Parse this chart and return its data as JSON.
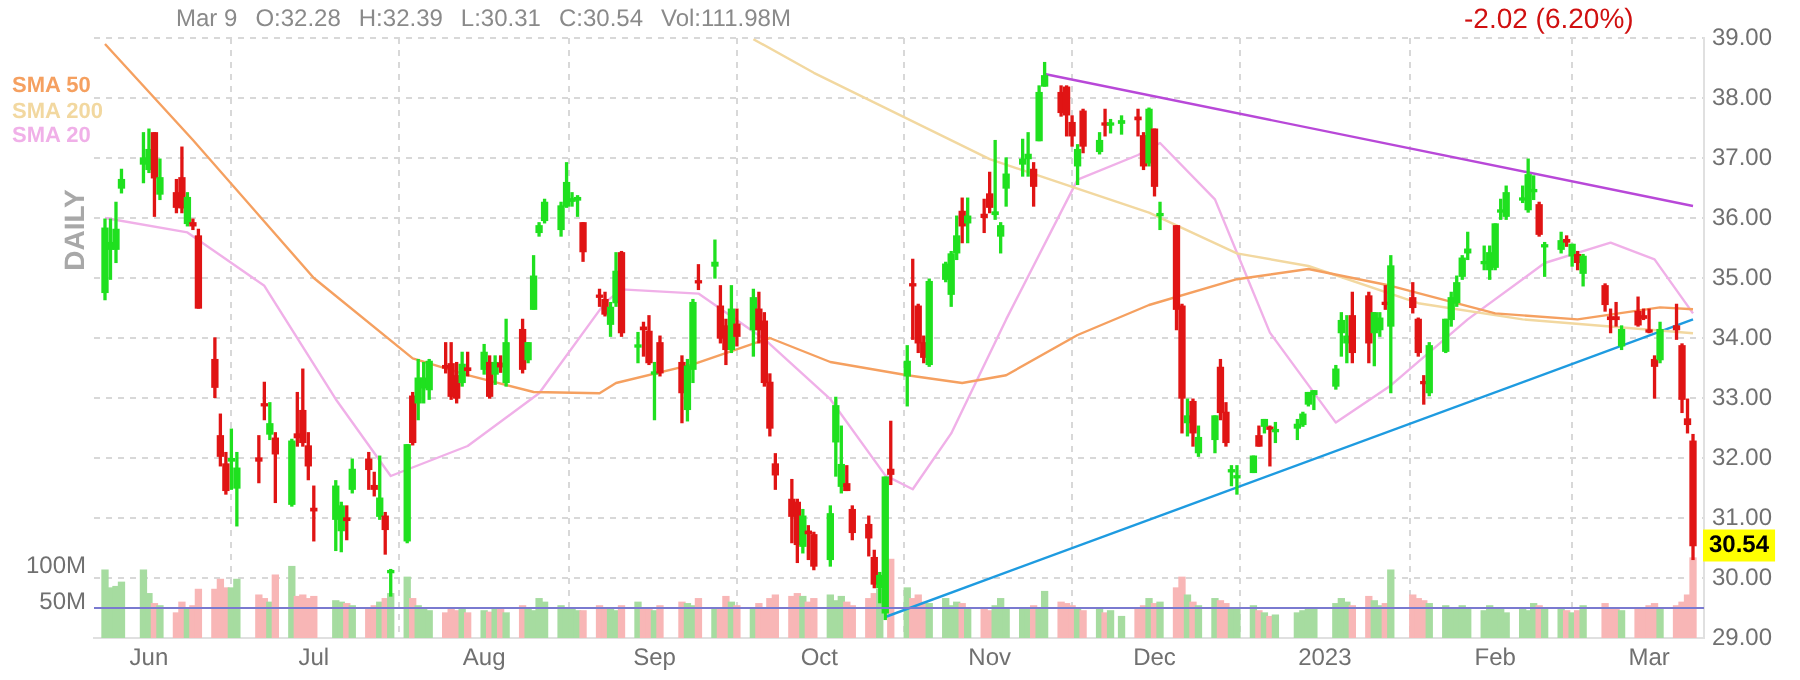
{
  "chart_data": {
    "type": "candlestick",
    "x": [
      "2022-05-24",
      "2022-05-25",
      "2022-05-26",
      "2022-05-27",
      "2022-05-31",
      "2022-06-01",
      "2022-06-02",
      "2022-06-03",
      "2022-06-06",
      "2022-06-07",
      "2022-06-08",
      "2022-06-09",
      "2022-06-10",
      "2022-06-13",
      "2022-06-14",
      "2022-06-15",
      "2022-06-16",
      "2022-06-17",
      "2022-06-21",
      "2022-06-22",
      "2022-06-23",
      "2022-06-24",
      "2022-06-27",
      "2022-06-28",
      "2022-06-29",
      "2022-06-30",
      "2022-07-01",
      "2022-07-05",
      "2022-07-06",
      "2022-07-07",
      "2022-07-08",
      "2022-07-11",
      "2022-07-12",
      "2022-07-13",
      "2022-07-14",
      "2022-07-15",
      "2022-07-18",
      "2022-07-19",
      "2022-07-20",
      "2022-07-21",
      "2022-07-22",
      "2022-07-25",
      "2022-07-26",
      "2022-07-27",
      "2022-07-28",
      "2022-07-29",
      "2022-08-01",
      "2022-08-02",
      "2022-08-03",
      "2022-08-04",
      "2022-08-05",
      "2022-08-08",
      "2022-08-09",
      "2022-08-10",
      "2022-08-11",
      "2022-08-12",
      "2022-08-15",
      "2022-08-16",
      "2022-08-17",
      "2022-08-18",
      "2022-08-19",
      "2022-08-22",
      "2022-08-23",
      "2022-08-24",
      "2022-08-25",
      "2022-08-26",
      "2022-08-29",
      "2022-08-30",
      "2022-08-31",
      "2022-09-01",
      "2022-09-02",
      "2022-09-06",
      "2022-09-07",
      "2022-09-08",
      "2022-09-09",
      "2022-09-12",
      "2022-09-13",
      "2022-09-14",
      "2022-09-15",
      "2022-09-16",
      "2022-09-19",
      "2022-09-20",
      "2022-09-21",
      "2022-09-22",
      "2022-09-23",
      "2022-09-26",
      "2022-09-27",
      "2022-09-28",
      "2022-09-29",
      "2022-09-30",
      "2022-10-03",
      "2022-10-04",
      "2022-10-05",
      "2022-10-06",
      "2022-10-07",
      "2022-10-10",
      "2022-10-11",
      "2022-10-12",
      "2022-10-13",
      "2022-10-14",
      "2022-10-17",
      "2022-10-18",
      "2022-10-19",
      "2022-10-20",
      "2022-10-21",
      "2022-10-24",
      "2022-10-25",
      "2022-10-26",
      "2022-10-27",
      "2022-10-28",
      "2022-10-31",
      "2022-11-01",
      "2022-11-02",
      "2022-11-03",
      "2022-11-04",
      "2022-11-07",
      "2022-11-08",
      "2022-11-09",
      "2022-11-10",
      "2022-11-11",
      "2022-11-14",
      "2022-11-15",
      "2022-11-16",
      "2022-11-17",
      "2022-11-18",
      "2022-11-21",
      "2022-11-22",
      "2022-11-23",
      "2022-11-25",
      "2022-11-28",
      "2022-11-29",
      "2022-11-30",
      "2022-12-01",
      "2022-12-02",
      "2022-12-05",
      "2022-12-06",
      "2022-12-07",
      "2022-12-08",
      "2022-12-09",
      "2022-12-12",
      "2022-12-13",
      "2022-12-14",
      "2022-12-15",
      "2022-12-16",
      "2022-12-19",
      "2022-12-20",
      "2022-12-21",
      "2022-12-22",
      "2022-12-23",
      "2022-12-27",
      "2022-12-28",
      "2022-12-29",
      "2022-12-30",
      "2023-01-03",
      "2023-01-04",
      "2023-01-05",
      "2023-01-06",
      "2023-01-09",
      "2023-01-10",
      "2023-01-11",
      "2023-01-12",
      "2023-01-13",
      "2023-01-17",
      "2023-01-18",
      "2023-01-19",
      "2023-01-20",
      "2023-01-23",
      "2023-01-24",
      "2023-01-25",
      "2023-01-26",
      "2023-01-27",
      "2023-01-30",
      "2023-01-31",
      "2023-02-01",
      "2023-02-02",
      "2023-02-03",
      "2023-02-06",
      "2023-02-07",
      "2023-02-08",
      "2023-02-09",
      "2023-02-10",
      "2023-02-13",
      "2023-02-14",
      "2023-02-15",
      "2023-02-16",
      "2023-02-17",
      "2023-02-21",
      "2023-02-22",
      "2023-02-23",
      "2023-02-24",
      "2023-02-27",
      "2023-02-28",
      "2023-03-01",
      "2023-03-02",
      "2023-03-03",
      "2023-03-06",
      "2023-03-07",
      "2023-03-08",
      "2023-03-09"
    ],
    "ohlc": [
      [
        34.76,
        35.98,
        34.64,
        35.83
      ],
      [
        35.48,
        35.98,
        34.98,
        35.59
      ],
      [
        35.48,
        36.26,
        35.26,
        35.81
      ],
      [
        36.5,
        36.81,
        36.42,
        36.64
      ],
      [
        36.9,
        37.42,
        36.59,
        37.0
      ],
      [
        36.81,
        37.48,
        36.76,
        37.14
      ],
      [
        37.42,
        37.42,
        36.03,
        36.67
      ],
      [
        36.4,
        36.98,
        36.31,
        36.67
      ],
      [
        36.42,
        36.64,
        36.09,
        36.18
      ],
      [
        36.67,
        37.18,
        36.09,
        36.17
      ],
      [
        35.91,
        36.42,
        35.87,
        36.34
      ],
      [
        35.92,
        35.98,
        35.81,
        35.87
      ],
      [
        35.7,
        35.81,
        34.5,
        34.5
      ],
      [
        33.64,
        34.0,
        33.01,
        33.18
      ],
      [
        32.37,
        32.73,
        31.87,
        32.03
      ],
      [
        31.9,
        32.09,
        31.4,
        31.46
      ],
      [
        31.95,
        32.48,
        31.48,
        31.99
      ],
      [
        31.5,
        32.09,
        30.87,
        31.83
      ],
      [
        32.0,
        32.37,
        31.59,
        31.95
      ],
      [
        32.9,
        33.26,
        32.64,
        32.87
      ],
      [
        32.4,
        32.92,
        32.31,
        32.57
      ],
      [
        32.33,
        32.42,
        31.26,
        32.07
      ],
      [
        31.23,
        32.31,
        31.2,
        32.28
      ],
      [
        32.4,
        33.09,
        32.2,
        32.34
      ],
      [
        32.79,
        33.48,
        32.2,
        32.26
      ],
      [
        32.2,
        32.42,
        31.64,
        31.87
      ],
      [
        31.16,
        31.53,
        30.62,
        31.12
      ],
      [
        30.98,
        31.62,
        30.46,
        31.53
      ],
      [
        30.79,
        31.26,
        30.44,
        31.2
      ],
      [
        31.0,
        31.2,
        30.64,
        30.96
      ],
      [
        31.48,
        31.98,
        31.42,
        31.81
      ],
      [
        31.98,
        32.09,
        31.48,
        31.81
      ],
      [
        31.54,
        31.76,
        31.37,
        31.48
      ],
      [
        31.03,
        32.03,
        30.98,
        31.33
      ],
      [
        31.03,
        31.09,
        30.4,
        30.81
      ],
      [
        30.09,
        30.14,
        29.7,
        30.11
      ],
      [
        30.62,
        32.22,
        30.59,
        32.22
      ],
      [
        33.03,
        33.09,
        32.22,
        32.26
      ],
      [
        32.92,
        33.64,
        32.64,
        33.33
      ],
      [
        33.17,
        33.59,
        32.92,
        33.33
      ],
      [
        33.14,
        33.64,
        32.98,
        33.61
      ],
      [
        33.54,
        33.92,
        33.42,
        33.5
      ],
      [
        33.57,
        33.92,
        32.98,
        33.03
      ],
      [
        33.37,
        33.59,
        32.92,
        33.0
      ],
      [
        33.26,
        33.76,
        33.2,
        33.56
      ],
      [
        33.5,
        33.76,
        33.37,
        33.46
      ],
      [
        33.48,
        33.89,
        33.4,
        33.76
      ],
      [
        33.59,
        33.7,
        33.0,
        33.03
      ],
      [
        33.4,
        33.7,
        33.23,
        33.59
      ],
      [
        33.58,
        33.7,
        33.43,
        33.52
      ],
      [
        33.26,
        34.31,
        33.2,
        33.92
      ],
      [
        34.14,
        34.31,
        33.42,
        33.48
      ],
      [
        33.64,
        33.92,
        33.59,
        33.92
      ],
      [
        34.48,
        35.37,
        34.48,
        35.03
      ],
      [
        35.76,
        35.92,
        35.7,
        35.87
      ],
      [
        35.96,
        36.31,
        35.92,
        36.26
      ],
      [
        35.81,
        36.26,
        35.7,
        36.2
      ],
      [
        36.2,
        36.92,
        36.18,
        36.59
      ],
      [
        36.28,
        36.42,
        36.2,
        36.32
      ],
      [
        36.3,
        36.37,
        36.03,
        36.34
      ],
      [
        35.92,
        35.92,
        35.28,
        35.44
      ],
      [
        34.7,
        34.81,
        34.53,
        34.68
      ],
      [
        34.64,
        34.76,
        34.37,
        34.4
      ],
      [
        34.23,
        34.59,
        34.03,
        34.51
      ],
      [
        34.59,
        35.42,
        34.53,
        35.11
      ],
      [
        35.42,
        35.44,
        34.03,
        34.09
      ],
      [
        33.85,
        34.09,
        33.59,
        33.87
      ],
      [
        34.18,
        34.26,
        33.7,
        34.14
      ],
      [
        34.11,
        34.37,
        33.56,
        33.59
      ],
      [
        33.4,
        33.59,
        32.64,
        33.43
      ],
      [
        33.92,
        34.03,
        33.37,
        33.42
      ],
      [
        33.59,
        33.7,
        32.59,
        33.09
      ],
      [
        32.81,
        33.64,
        32.62,
        33.53
      ],
      [
        33.48,
        34.64,
        33.26,
        34.59
      ],
      [
        34.94,
        35.22,
        34.81,
        34.92
      ],
      [
        35.2,
        35.63,
        35.0,
        35.26
      ],
      [
        34.53,
        34.87,
        33.92,
        34.0
      ],
      [
        34.2,
        34.31,
        33.56,
        33.81
      ],
      [
        33.81,
        34.87,
        33.76,
        34.48
      ],
      [
        34.23,
        34.48,
        33.87,
        34.03
      ],
      [
        34.14,
        34.81,
        33.7,
        34.67
      ],
      [
        34.48,
        34.76,
        33.92,
        34.14
      ],
      [
        34.28,
        34.42,
        33.2,
        33.26
      ],
      [
        33.26,
        33.4,
        32.37,
        32.5
      ],
      [
        31.9,
        32.07,
        31.48,
        31.72
      ],
      [
        31.31,
        31.64,
        30.59,
        31.03
      ],
      [
        31.26,
        31.31,
        30.26,
        30.56
      ],
      [
        30.53,
        31.14,
        30.42,
        31.03
      ],
      [
        30.78,
        30.87,
        30.31,
        30.74
      ],
      [
        30.72,
        30.76,
        30.14,
        30.2
      ],
      [
        30.31,
        31.2,
        30.2,
        31.07
      ],
      [
        32.27,
        33.01,
        31.7,
        32.87
      ],
      [
        31.53,
        32.53,
        31.42,
        31.89
      ],
      [
        31.57,
        31.87,
        31.46,
        31.46
      ],
      [
        31.14,
        31.2,
        30.64,
        30.76
      ],
      [
        30.89,
        31.03,
        30.37,
        30.67
      ],
      [
        30.34,
        30.46,
        29.84,
        29.9
      ],
      [
        29.84,
        30.09,
        29.59,
        30.04
      ],
      [
        29.42,
        31.68,
        29.31,
        31.68
      ],
      [
        31.81,
        32.61,
        31.56,
        31.73
      ],
      [
        33.37,
        33.87,
        32.87,
        33.61
      ],
      [
        34.9,
        35.31,
        33.98,
        34.87
      ],
      [
        34.53,
        34.56,
        33.76,
        33.92
      ],
      [
        33.92,
        34.03,
        33.59,
        33.68
      ],
      [
        33.56,
        34.98,
        33.53,
        34.94
      ],
      [
        34.98,
        35.26,
        34.94,
        35.23
      ],
      [
        34.73,
        35.44,
        34.53,
        35.4
      ],
      [
        35.42,
        36.03,
        35.31,
        35.7
      ],
      [
        36.11,
        36.33,
        35.59,
        35.87
      ],
      [
        35.92,
        36.33,
        35.59,
        36.03
      ],
      [
        36.06,
        36.31,
        35.76,
        36.01
      ],
      [
        36.4,
        36.76,
        36.09,
        36.18
      ],
      [
        36.06,
        37.29,
        35.98,
        36.1
      ],
      [
        35.7,
        35.92,
        35.42,
        35.87
      ],
      [
        36.5,
        37.0,
        36.2,
        36.73
      ],
      [
        36.9,
        37.31,
        36.7,
        36.98
      ],
      [
        36.99,
        37.42,
        36.7,
        37.06
      ],
      [
        36.81,
        36.92,
        36.2,
        36.53
      ],
      [
        37.29,
        38.2,
        37.29,
        38.09
      ],
      [
        38.2,
        38.59,
        38.2,
        38.37
      ],
      [
        38.09,
        38.2,
        37.7,
        37.76
      ],
      [
        38.18,
        38.2,
        37.37,
        37.72
      ],
      [
        37.59,
        37.7,
        37.2,
        37.37
      ],
      [
        36.87,
        37.22,
        36.56,
        37.14
      ],
      [
        37.78,
        37.81,
        37.09,
        37.2
      ],
      [
        37.11,
        37.42,
        37.07,
        37.29
      ],
      [
        37.58,
        37.81,
        37.37,
        37.55
      ],
      [
        37.55,
        37.64,
        37.42,
        37.58
      ],
      [
        37.58,
        37.7,
        37.4,
        37.62
      ],
      [
        37.68,
        37.81,
        37.37,
        37.64
      ],
      [
        37.37,
        37.42,
        36.81,
        36.87
      ],
      [
        36.92,
        37.83,
        36.87,
        37.81
      ],
      [
        37.48,
        37.48,
        36.37,
        36.53
      ],
      [
        36.04,
        36.26,
        35.81,
        36.05
      ],
      [
        35.87,
        35.87,
        34.14,
        34.48
      ],
      [
        34.53,
        34.56,
        32.42,
        33.0
      ],
      [
        32.59,
        32.98,
        32.37,
        32.7
      ],
      [
        32.94,
        32.98,
        32.2,
        32.42
      ],
      [
        32.09,
        32.53,
        32.03,
        32.34
      ],
      [
        32.31,
        32.7,
        32.09,
        32.7
      ],
      [
        33.51,
        33.64,
        32.64,
        32.76
      ],
      [
        32.76,
        32.92,
        32.2,
        32.26
      ],
      [
        31.77,
        31.87,
        31.54,
        31.78
      ],
      [
        31.67,
        31.87,
        31.4,
        31.69
      ],
      [
        31.76,
        32.03,
        31.76,
        32.03
      ],
      [
        32.37,
        32.53,
        32.2,
        32.2
      ],
      [
        32.53,
        32.64,
        32.42,
        32.64
      ],
      [
        32.5,
        32.53,
        31.87,
        32.48
      ],
      [
        32.44,
        32.59,
        32.26,
        32.46
      ],
      [
        32.5,
        32.64,
        32.31,
        32.56
      ],
      [
        32.56,
        32.76,
        32.53,
        32.73
      ],
      [
        32.9,
        33.09,
        32.87,
        33.09
      ],
      [
        33.06,
        33.12,
        32.81,
        33.12
      ],
      [
        33.2,
        33.54,
        33.15,
        33.48
      ],
      [
        34.09,
        34.42,
        33.7,
        34.29
      ],
      [
        33.92,
        34.37,
        33.59,
        34.03
      ],
      [
        34.37,
        34.76,
        33.59,
        33.76
      ],
      [
        34.7,
        34.76,
        33.59,
        33.92
      ],
      [
        34.09,
        34.42,
        33.54,
        34.42
      ],
      [
        34.14,
        34.42,
        34.03,
        34.33
      ],
      [
        34.57,
        34.87,
        34.48,
        34.56
      ],
      [
        34.2,
        35.37,
        33.09,
        35.2
      ],
      [
        34.67,
        34.92,
        34.42,
        34.51
      ],
      [
        34.31,
        34.33,
        33.7,
        33.76
      ],
      [
        33.27,
        33.37,
        32.9,
        33.24
      ],
      [
        33.09,
        33.92,
        33.04,
        33.87
      ],
      [
        33.78,
        34.31,
        33.76,
        34.31
      ],
      [
        34.31,
        34.76,
        34.2,
        34.67
      ],
      [
        34.59,
        35.03,
        34.53,
        34.92
      ],
      [
        35.03,
        35.37,
        34.98,
        35.33
      ],
      [
        35.42,
        35.76,
        35.31,
        35.48
      ],
      [
        35.24,
        35.53,
        35.14,
        35.27
      ],
      [
        35.14,
        35.53,
        34.98,
        35.42
      ],
      [
        35.18,
        35.9,
        35.14,
        35.9
      ],
      [
        36.1,
        36.31,
        35.98,
        36.12
      ],
      [
        36.03,
        36.53,
        35.98,
        36.42
      ],
      [
        36.3,
        36.53,
        36.26,
        36.33
      ],
      [
        36.14,
        36.98,
        36.1,
        36.72
      ],
      [
        36.44,
        36.7,
        36.31,
        36.46
      ],
      [
        36.22,
        36.26,
        35.7,
        35.73
      ],
      [
        35.52,
        35.59,
        35.03,
        35.54
      ],
      [
        35.48,
        35.76,
        35.42,
        35.62
      ],
      [
        35.64,
        35.7,
        35.53,
        35.6
      ],
      [
        35.37,
        35.56,
        35.2,
        35.56
      ],
      [
        35.39,
        35.44,
        35.14,
        35.26
      ],
      [
        35.08,
        35.39,
        34.87,
        35.36
      ],
      [
        34.87,
        34.9,
        34.45,
        34.56
      ],
      [
        34.35,
        34.48,
        34.09,
        34.31
      ],
      [
        34.35,
        34.59,
        34.2,
        34.31
      ],
      [
        33.87,
        34.2,
        33.81,
        34.14
      ],
      [
        34.44,
        34.68,
        34.2,
        34.22
      ],
      [
        34.37,
        34.48,
        34.31,
        34.33
      ],
      [
        34.13,
        34.48,
        34.09,
        34.1
      ],
      [
        33.64,
        33.7,
        33.0,
        33.53
      ],
      [
        33.64,
        34.26,
        33.59,
        34.14
      ],
      [
        34.2,
        34.56,
        33.98,
        34.14
      ],
      [
        33.87,
        33.9,
        32.76,
        32.98
      ],
      [
        32.65,
        32.98,
        32.42,
        32.56
      ],
      [
        32.28,
        32.39,
        30.31,
        30.54
      ]
    ],
    "colors": [
      "#1fe01f",
      "#1fe01f",
      "#1fe01f",
      "#1fe01f",
      "#1fe01f",
      "#1fe01f",
      "#e01414",
      "#1fe01f",
      "#e01414",
      "#e01414",
      "#1fe01f",
      "#e01414",
      "#e01414",
      "#e01414",
      "#e01414",
      "#e01414",
      "#1fe01f",
      "#1fe01f",
      "#e01414",
      "#e01414",
      "#1fe01f",
      "#e01414",
      "#1fe01f",
      "#e01414",
      "#e01414",
      "#e01414",
      "#e01414",
      "#1fe01f",
      "#1fe01f",
      "#e01414",
      "#1fe01f",
      "#e01414",
      "#e01414",
      "#1fe01f",
      "#e01414",
      "#1fe01f",
      "#1fe01f",
      "#e01414",
      "#1fe01f",
      "#1fe01f",
      "#1fe01f",
      "#e01414",
      "#e01414",
      "#e01414",
      "#1fe01f",
      "#e01414",
      "#1fe01f",
      "#e01414",
      "#1fe01f",
      "#e01414",
      "#1fe01f",
      "#e01414",
      "#1fe01f",
      "#1fe01f",
      "#1fe01f",
      "#1fe01f",
      "#1fe01f",
      "#1fe01f",
      "#1fe01f",
      "#1fe01f",
      "#e01414",
      "#e01414",
      "#e01414",
      "#1fe01f",
      "#1fe01f",
      "#e01414",
      "#1fe01f",
      "#e01414",
      "#e01414",
      "#1fe01f",
      "#e01414",
      "#e01414",
      "#1fe01f",
      "#1fe01f",
      "#e01414",
      "#1fe01f",
      "#e01414",
      "#e01414",
      "#1fe01f",
      "#e01414",
      "#1fe01f",
      "#e01414",
      "#e01414",
      "#e01414",
      "#e01414",
      "#e01414",
      "#e01414",
      "#1fe01f",
      "#e01414",
      "#e01414",
      "#1fe01f",
      "#1fe01f",
      "#1fe01f",
      "#e01414",
      "#e01414",
      "#e01414",
      "#e01414",
      "#1fe01f",
      "#1fe01f",
      "#e01414",
      "#1fe01f",
      "#e01414",
      "#e01414",
      "#e01414",
      "#1fe01f",
      "#1fe01f",
      "#1fe01f",
      "#1fe01f",
      "#e01414",
      "#1fe01f",
      "#e01414",
      "#e01414",
      "#1fe01f",
      "#1fe01f",
      "#1fe01f",
      "#1fe01f",
      "#1fe01f",
      "#e01414",
      "#1fe01f",
      "#1fe01f",
      "#e01414",
      "#e01414",
      "#e01414",
      "#1fe01f",
      "#e01414",
      "#1fe01f",
      "#e01414",
      "#1fe01f",
      "#1fe01f",
      "#e01414",
      "#e01414",
      "#1fe01f",
      "#e01414",
      "#1fe01f",
      "#e01414",
      "#e01414",
      "#1fe01f",
      "#e01414",
      "#1fe01f",
      "#1fe01f",
      "#e01414",
      "#e01414",
      "#1fe01f",
      "#1fe01f",
      "#1fe01f",
      "#e01414",
      "#1fe01f",
      "#e01414",
      "#1fe01f",
      "#1fe01f",
      "#1fe01f",
      "#1fe01f",
      "#1fe01f",
      "#1fe01f",
      "#1fe01f",
      "#1fe01f",
      "#e01414",
      "#e01414",
      "#1fe01f",
      "#1fe01f",
      "#e01414",
      "#1fe01f",
      "#e01414",
      "#e01414",
      "#e01414",
      "#1fe01f",
      "#1fe01f",
      "#1fe01f",
      "#1fe01f",
      "#1fe01f",
      "#1fe01f",
      "#1fe01f",
      "#1fe01f",
      "#1fe01f",
      "#1fe01f",
      "#1fe01f",
      "#1fe01f",
      "#1fe01f",
      "#1fe01f",
      "#e01414",
      "#1fe01f",
      "#1fe01f",
      "#e01414",
      "#1fe01f",
      "#e01414",
      "#1fe01f",
      "#e01414",
      "#e01414",
      "#e01414",
      "#1fe01f",
      "#e01414",
      "#e01414",
      "#e01414",
      "#e01414",
      "#1fe01f",
      "#e01414",
      "#e01414",
      "#e01414",
      "#e01414"
    ],
    "xlim": [
      "2022-05-22",
      "2023-03-11"
    ],
    "series": [
      {
        "name": "SMA 50",
        "type": "line",
        "color": "#f5a060",
        "x": [
          "2022-05-24",
          "2022-06-09",
          "2022-07-01",
          "2022-07-19",
          "2022-07-29",
          "2022-08-10",
          "2022-08-22",
          "2022-08-25",
          "2022-09-08",
          "2022-09-22",
          "2022-10-03",
          "2022-10-17",
          "2022-10-27",
          "2022-11-04",
          "2022-11-17",
          "2022-11-30",
          "2022-12-16",
          "2022-12-29",
          "2023-01-13",
          "2023-02-01",
          "2023-02-16",
          "2023-03-03",
          "2023-03-09"
        ],
        "values": [
          38.9,
          37.3,
          35.0,
          33.66,
          33.38,
          33.1,
          33.08,
          33.25,
          33.56,
          34.0,
          33.6,
          33.38,
          33.25,
          33.38,
          34.05,
          34.55,
          34.98,
          35.15,
          34.87,
          34.41,
          34.31,
          34.51,
          34.48
        ]
      },
      {
        "name": "SMA 200",
        "type": "line",
        "color": "#f2d8a0",
        "x": [
          "2022-09-19",
          "2022-09-30",
          "2022-11-01",
          "2022-11-30",
          "2022-12-16",
          "2022-12-29",
          "2023-01-18",
          "2023-02-06",
          "2023-03-09"
        ],
        "values": [
          38.98,
          38.42,
          36.98,
          36.09,
          35.41,
          35.2,
          34.58,
          34.31,
          34.08
        ]
      },
      {
        "name": "SMA 20",
        "type": "line",
        "color": "#f0b0e8",
        "x": [
          "2022-05-24",
          "2022-06-08",
          "2022-06-22",
          "2022-07-05",
          "2022-07-15",
          "2022-07-29",
          "2022-08-11",
          "2022-08-23",
          "2022-08-26",
          "2022-09-09",
          "2022-09-21",
          "2022-10-03",
          "2022-10-13",
          "2022-10-18",
          "2022-10-25",
          "2022-11-04",
          "2022-11-17",
          "2022-11-28",
          "2022-12-02",
          "2022-12-12",
          "2022-12-22",
          "2023-01-03",
          "2023-01-13",
          "2023-01-27",
          "2023-02-10",
          "2023-02-22",
          "2023-03-02",
          "2023-03-09"
        ],
        "values": [
          36.0,
          35.76,
          34.87,
          32.98,
          31.7,
          32.2,
          33.08,
          34.59,
          34.81,
          34.74,
          33.98,
          32.98,
          31.71,
          31.48,
          32.41,
          34.31,
          36.64,
          37.05,
          37.25,
          36.31,
          34.09,
          32.59,
          33.21,
          34.31,
          35.25,
          35.59,
          35.31,
          34.41
        ]
      },
      {
        "type": "line",
        "color": "#b848d8",
        "x": [
          "2022-11-11",
          "2023-03-09"
        ],
        "values": [
          38.4,
          36.2
        ]
      },
      {
        "type": "line",
        "color": "#1e9be0",
        "x": [
          "2022-10-13",
          "2023-03-09"
        ],
        "values": [
          29.35,
          34.31
        ]
      },
      {
        "type": "bar",
        "axis": "y2",
        "colors": [
          "#a6dca0",
          "#a6dca0",
          "#a6dca0",
          "#a6dca0",
          "#a6dca0",
          "#a6dca0",
          "#f8b6b6",
          "#a6dca0",
          "#f8b6b6",
          "#f8b6b6",
          "#a6dca0",
          "#f8b6b6",
          "#f8b6b6",
          "#f8b6b6",
          "#f8b6b6",
          "#f8b6b6",
          "#a6dca0",
          "#a6dca0",
          "#f8b6b6",
          "#f8b6b6",
          "#a6dca0",
          "#f8b6b6",
          "#a6dca0",
          "#f8b6b6",
          "#f8b6b6",
          "#f8b6b6",
          "#f8b6b6",
          "#a6dca0",
          "#a6dca0",
          "#f8b6b6",
          "#a6dca0",
          "#f8b6b6",
          "#f8b6b6",
          "#a6dca0",
          "#f8b6b6",
          "#a6dca0",
          "#a6dca0",
          "#f8b6b6",
          "#a6dca0",
          "#a6dca0",
          "#a6dca0",
          "#f8b6b6",
          "#f8b6b6",
          "#f8b6b6",
          "#a6dca0",
          "#f8b6b6",
          "#a6dca0",
          "#f8b6b6",
          "#a6dca0",
          "#f8b6b6",
          "#a6dca0",
          "#f8b6b6",
          "#a6dca0",
          "#a6dca0",
          "#a6dca0",
          "#a6dca0",
          "#a6dca0",
          "#a6dca0",
          "#a6dca0",
          "#a6dca0",
          "#f8b6b6",
          "#f8b6b6",
          "#f8b6b6",
          "#a6dca0",
          "#a6dca0",
          "#f8b6b6",
          "#a6dca0",
          "#f8b6b6",
          "#f8b6b6",
          "#a6dca0",
          "#f8b6b6",
          "#f8b6b6",
          "#a6dca0",
          "#a6dca0",
          "#f8b6b6",
          "#a6dca0",
          "#f8b6b6",
          "#f8b6b6",
          "#a6dca0",
          "#f8b6b6",
          "#a6dca0",
          "#f8b6b6",
          "#f8b6b6",
          "#f8b6b6",
          "#f8b6b6",
          "#f8b6b6",
          "#f8b6b6",
          "#a6dca0",
          "#f8b6b6",
          "#f8b6b6",
          "#a6dca0",
          "#a6dca0",
          "#a6dca0",
          "#f8b6b6",
          "#f8b6b6",
          "#f8b6b6",
          "#f8b6b6",
          "#a6dca0",
          "#a6dca0",
          "#f8b6b6",
          "#a6dca0",
          "#f8b6b6",
          "#f8b6b6",
          "#f8b6b6",
          "#a6dca0",
          "#a6dca0",
          "#a6dca0",
          "#a6dca0",
          "#f8b6b6",
          "#a6dca0",
          "#f8b6b6",
          "#f8b6b6",
          "#a6dca0",
          "#a6dca0",
          "#a6dca0",
          "#a6dca0",
          "#a6dca0",
          "#f8b6b6",
          "#a6dca0",
          "#a6dca0",
          "#f8b6b6",
          "#f8b6b6",
          "#f8b6b6",
          "#a6dca0",
          "#f8b6b6",
          "#a6dca0",
          "#f8b6b6",
          "#a6dca0",
          "#a6dca0",
          "#f8b6b6",
          "#f8b6b6",
          "#a6dca0",
          "#f8b6b6",
          "#a6dca0",
          "#f8b6b6",
          "#f8b6b6",
          "#a6dca0",
          "#f8b6b6",
          "#a6dca0",
          "#a6dca0",
          "#f8b6b6",
          "#f8b6b6",
          "#a6dca0",
          "#a6dca0",
          "#a6dca0",
          "#f8b6b6",
          "#a6dca0",
          "#f8b6b6",
          "#a6dca0",
          "#a6dca0",
          "#a6dca0",
          "#a6dca0",
          "#a6dca0",
          "#a6dca0",
          "#a6dca0",
          "#a6dca0",
          "#f8b6b6",
          "#f8b6b6",
          "#a6dca0",
          "#a6dca0",
          "#f8b6b6",
          "#a6dca0",
          "#f8b6b6",
          "#f8b6b6",
          "#f8b6b6",
          "#a6dca0",
          "#a6dca0",
          "#a6dca0",
          "#a6dca0",
          "#a6dca0",
          "#a6dca0",
          "#a6dca0",
          "#a6dca0",
          "#a6dca0",
          "#a6dca0",
          "#a6dca0",
          "#a6dca0",
          "#a6dca0",
          "#a6dca0",
          "#f8b6b6",
          "#a6dca0",
          "#a6dca0",
          "#f8b6b6",
          "#a6dca0",
          "#f8b6b6",
          "#a6dca0",
          "#f8b6b6",
          "#f8b6b6",
          "#f8b6b6",
          "#a6dca0",
          "#f8b6b6",
          "#f8b6b6",
          "#f8b6b6",
          "#f8b6b6",
          "#a6dca0",
          "#f8b6b6",
          "#f8b6b6",
          "#f8b6b6",
          "#f8b6b6"
        ],
        "values": [
          95,
          70,
          72,
          78,
          95,
          62,
          48,
          45,
          35,
          50,
          42,
          45,
          68,
          68,
          82,
          70,
          70,
          82,
          60,
          55,
          50,
          88,
          100,
          58,
          60,
          55,
          58,
          52,
          50,
          48,
          45,
          40,
          45,
          50,
          55,
          62,
          85,
          55,
          45,
          40,
          38,
          35,
          42,
          38,
          40,
          35,
          38,
          36,
          42,
          40,
          35,
          45,
          40,
          38,
          55,
          50,
          45,
          42,
          40,
          38,
          38,
          45,
          40,
          42,
          38,
          45,
          50,
          42,
          40,
          38,
          45,
          50,
          48,
          45,
          55,
          42,
          40,
          58,
          50,
          45,
          40,
          48,
          42,
          55,
          60,
          58,
          62,
          58,
          50,
          55,
          60,
          52,
          58,
          50,
          45,
          55,
          62,
          68,
          null,
          110,
          70,
          55,
          60,
          50,
          48,
          55,
          45,
          50,
          48,
          42,
          40,
          38,
          45,
          55,
          40,
          42,
          40,
          45,
          40,
          65,
          50,
          48,
          45,
          40,
          38,
          42,
          35,
          38,
          30,
          40,
          45,
          55,
          48,
          50,
          70,
          85,
          60,
          50,
          45,
          55,
          52,
          48,
          40,
          42,
          45,
          38,
          35,
          30,
          32,
          35,
          38,
          40,
          42,
          48,
          55,
          50,
          45,
          58,
          52,
          45,
          48,
          95,
          60,
          55,
          52,
          48,
          45,
          42,
          40,
          45,
          42,
          38,
          45,
          42,
          40,
          35,
          42,
          38,
          48,
          45,
          42,
          40,
          38,
          35,
          38,
          45,
          48,
          42,
          40,
          38,
          42,
          40,
          45,
          48,
          42,
          45,
          50,
          60,
          111.98
        ]
      }
    ],
    "subtitle": "-2.02 (6.20%)",
    "y2label": "DAILY",
    "annotations": [
      "Mar 9",
      "O:32.28",
      "H:32.39",
      "L:30.31",
      "C:30.54",
      "Vol:111.98M",
      {
        "text": "30.54",
        "x": "2023-03-09",
        "y": 30.54
      }
    ],
    "ylim": [
      29,
      39
    ],
    "yticks": [
      {
        "value": 29,
        "label": "29.00"
      },
      {
        "value": 30,
        "label": "30.00"
      },
      {
        "value": 31,
        "label": "31.00"
      },
      {
        "value": 32,
        "label": "32.00"
      },
      {
        "value": 33,
        "label": "33.00"
      },
      {
        "value": 34,
        "label": "34.00"
      },
      {
        "value": 35,
        "label": "35.00"
      },
      {
        "value": 36,
        "label": "36.00"
      },
      {
        "value": 37,
        "label": "37.00"
      },
      {
        "value": 38,
        "label": "38.00"
      },
      {
        "value": 39,
        "label": "39.00"
      }
    ],
    "y2lim": [
      0,
      840
    ],
    "y2ticks": [
      {
        "value": 50,
        "label": "50M"
      },
      {
        "value": 100,
        "label": "100M"
      }
    ],
    "xticks": [
      {
        "value": "2022-06-01",
        "label": "Jun"
      },
      {
        "value": "2022-07-01",
        "label": "Jul"
      },
      {
        "value": "2022-08-01",
        "label": "Aug"
      },
      {
        "value": "2022-09-01",
        "label": "Sep"
      },
      {
        "value": "2022-10-01",
        "label": "Oct"
      },
      {
        "value": "2022-11-01",
        "label": "Nov"
      },
      {
        "value": "2022-12-01",
        "label": "Dec"
      },
      {
        "value": "2023-01-01",
        "label": "2023"
      },
      {
        "value": "2023-02-01",
        "label": "Feb"
      },
      {
        "value": "2023-03-01",
        "label": "Mar"
      }
    ],
    "ref_lines": [
      {
        "axis": "y2",
        "value": 42,
        "color": "#7a7ad0"
      }
    ],
    "grid": true,
    "legend": "top left"
  }
}
